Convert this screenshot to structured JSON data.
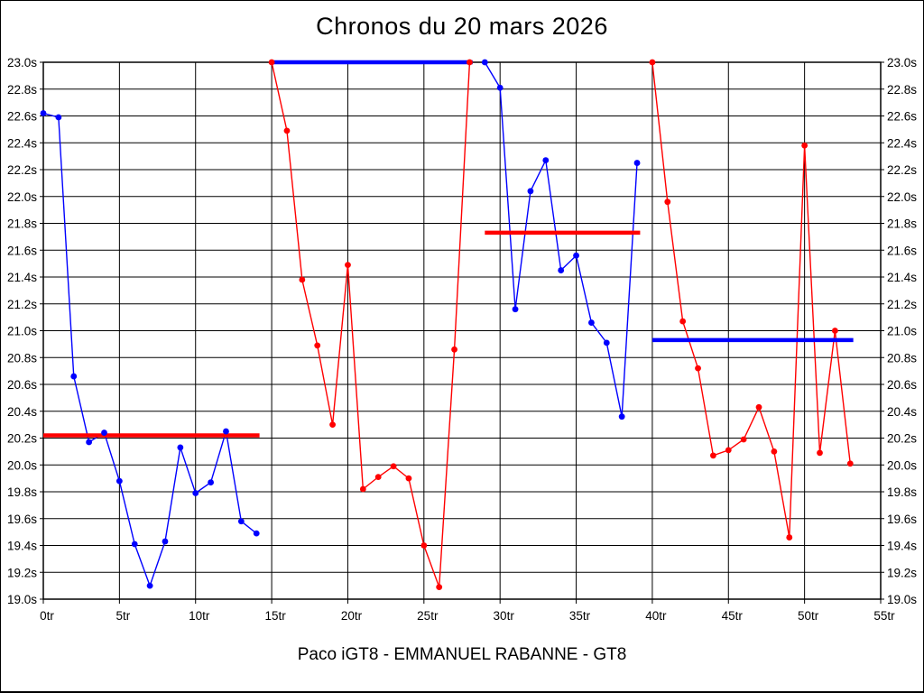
{
  "window": {
    "background": "#ffffff",
    "border_color": "#000000"
  },
  "chart_data": {
    "type": "line",
    "title": "Chronos du 20 mars 2026",
    "footer": "Paco iGT8 - EMMANUEL RABANNE - GT8",
    "grid": true,
    "legend": "none",
    "colors": {
      "driver_blue": "#0000ff",
      "driver_red": "#ff0000",
      "grid": "#000000",
      "text": "#000000"
    },
    "x_axis": {
      "min": 0,
      "max": 55,
      "tick_step": 5,
      "unit": "tr",
      "tick_labels": [
        "0tr",
        "5tr",
        "10tr",
        "15tr",
        "20tr",
        "25tr",
        "30tr",
        "35tr",
        "40tr",
        "45tr",
        "50tr",
        "55tr"
      ]
    },
    "y_axis": {
      "min": 19.0,
      "max": 23.0,
      "tick_step": 0.2,
      "unit": "s",
      "tick_labels": [
        "23.0s",
        "22.8s",
        "22.6s",
        "22.4s",
        "22.2s",
        "22.0s",
        "21.8s",
        "21.6s",
        "21.4s",
        "21.2s",
        "21.0s",
        "20.8s",
        "20.6s",
        "20.4s",
        "20.2s",
        "20.0s",
        "19.8s",
        "19.6s",
        "19.4s",
        "19.2s",
        "19.0s"
      ]
    },
    "series": [
      {
        "name": "stint-1-blue",
        "color": "#0000ff",
        "first_lap": 0,
        "values": [
          22.62,
          22.59,
          20.66,
          20.17,
          20.24,
          19.88,
          19.41,
          19.1,
          19.43,
          20.13,
          19.79,
          19.87,
          20.25,
          19.58,
          19.49
        ]
      },
      {
        "name": "stint-2-red",
        "color": "#ff0000",
        "first_lap": 15,
        "values": [
          23.0,
          22.49,
          21.38,
          20.89,
          20.3,
          21.49,
          19.82,
          19.91,
          19.99,
          19.9,
          19.4,
          19.09,
          20.86,
          23.0
        ]
      },
      {
        "name": "stint-3-blue",
        "color": "#0000ff",
        "first_lap": 29,
        "values": [
          23.0,
          22.81,
          21.16,
          22.04,
          22.27,
          21.45,
          21.56,
          21.06,
          20.91,
          20.36,
          22.25
        ]
      },
      {
        "name": "stint-4-red",
        "color": "#ff0000",
        "first_lap": 40,
        "values": [
          23.0,
          21.96,
          21.07,
          20.72,
          20.07,
          20.11,
          20.19,
          20.43,
          20.1,
          19.46,
          22.38,
          20.09,
          21.0,
          20.01
        ]
      }
    ],
    "average_lines": [
      {
        "name": "average-line-stint-1",
        "color": "#ff0000",
        "value": 20.22,
        "from_lap": 0,
        "to_lap": 14.2
      },
      {
        "name": "average-line-stint-2",
        "color": "#0000ff",
        "value": 23.0,
        "from_lap": 15,
        "to_lap": 28.2
      },
      {
        "name": "average-line-stint-3",
        "color": "#ff0000",
        "value": 21.73,
        "from_lap": 29,
        "to_lap": 39.2
      },
      {
        "name": "average-line-stint-4",
        "color": "#0000ff",
        "value": 20.93,
        "from_lap": 40,
        "to_lap": 53.2
      }
    ]
  }
}
